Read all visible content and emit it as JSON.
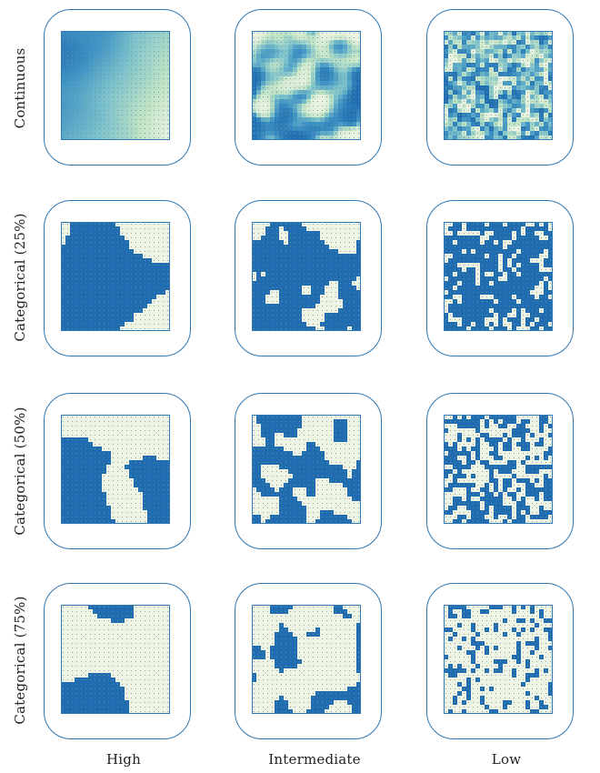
{
  "rows": [
    {
      "label": "Continuous",
      "kind": "continuous",
      "p": 0
    },
    {
      "label": "Categorical (25%)",
      "kind": "categorical",
      "p": 0.25
    },
    {
      "label": "Categorical (50%)",
      "kind": "categorical",
      "p": 0.5
    },
    {
      "label": "Categorical (75%)",
      "kind": "categorical",
      "p": 0.75
    }
  ],
  "columns": [
    {
      "label": "High",
      "autocorrelation": "high"
    },
    {
      "label": "Intermediate",
      "autocorrelation": "intermediate"
    },
    {
      "label": "Low",
      "autocorrelation": "low"
    }
  ],
  "grid_cells": 24,
  "colors": {
    "frame": "#2f78b4",
    "habitat": "#1f6db0",
    "matrix": "#eef4e4",
    "dot": "#7a8f9c",
    "continuous_ramp": [
      "#1f6db0",
      "#3f93c4",
      "#7cc2cc",
      "#bfe3c4",
      "#eef4e4"
    ]
  }
}
